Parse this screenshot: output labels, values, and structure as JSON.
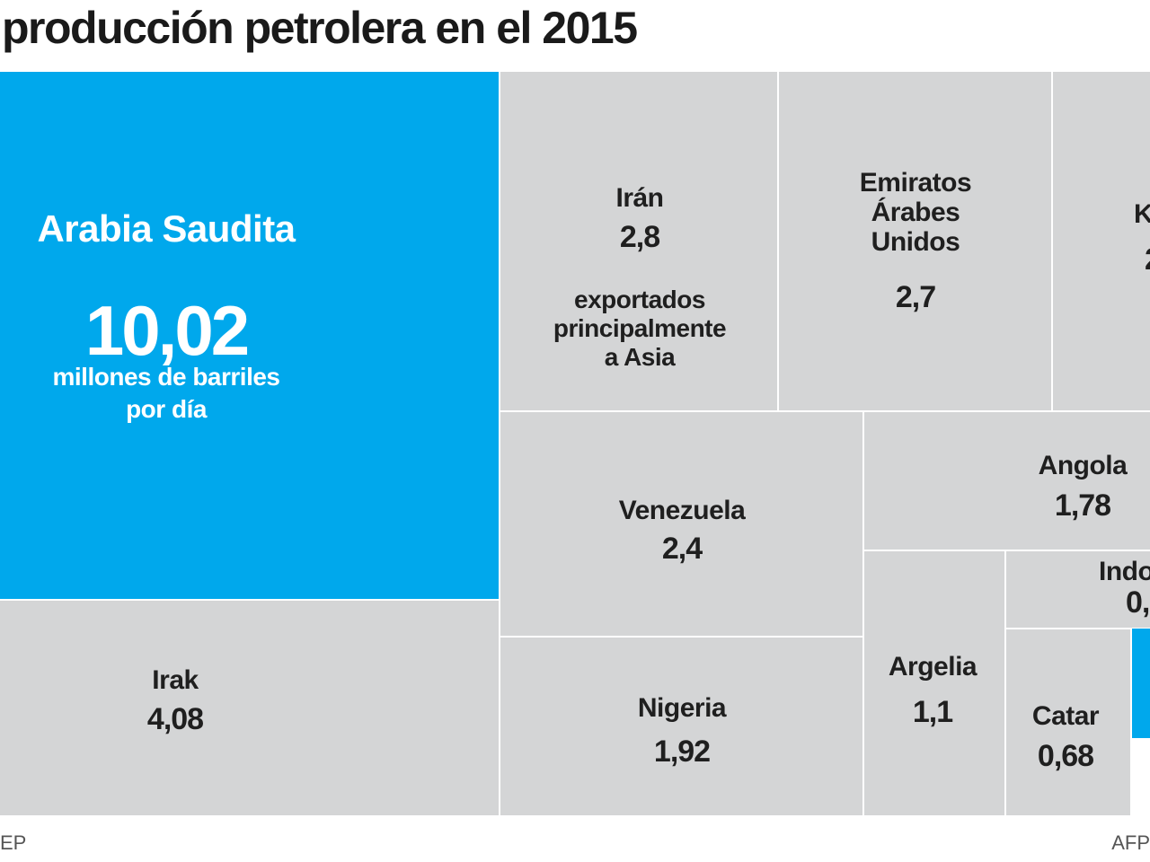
{
  "chart_data": {
    "type": "treemap",
    "title": "producción petrolera en el 2015",
    "unit": "millones de barriles por día",
    "items": [
      {
        "name": "Arabia Saudita",
        "value": 10.02,
        "value_label": "10,02",
        "unit_label": "millones de barriles por día",
        "highlight": true
      },
      {
        "name": "Irak",
        "value": 4.08,
        "value_label": "4,08"
      },
      {
        "name": "Irán",
        "value": 2.8,
        "value_label": "2,8",
        "note": "exportados principalmente a Asia"
      },
      {
        "name": "Emiratos Árabes Unidos",
        "value": 2.7,
        "value_label": "2,7"
      },
      {
        "name": "K",
        "value": null,
        "value_label": "2",
        "truncated": true
      },
      {
        "name": "Venezuela",
        "value": 2.4,
        "value_label": "2,4"
      },
      {
        "name": "Angola",
        "value": 1.78,
        "value_label": "1,78"
      },
      {
        "name": "Nigeria",
        "value": 1.92,
        "value_label": "1,92"
      },
      {
        "name": "Argelia",
        "value": 1.1,
        "value_label": "1,1"
      },
      {
        "name": "Indo",
        "value": null,
        "value_label": "0,",
        "truncated": true
      },
      {
        "name": "Catar",
        "value": 0.68,
        "value_label": "0,68"
      }
    ]
  },
  "footer": {
    "source": "EP",
    "credit": "AFP"
  },
  "colors": {
    "highlight": "#00a8ec",
    "cell": "#d4d5d6",
    "text": "#1f1f1f"
  }
}
